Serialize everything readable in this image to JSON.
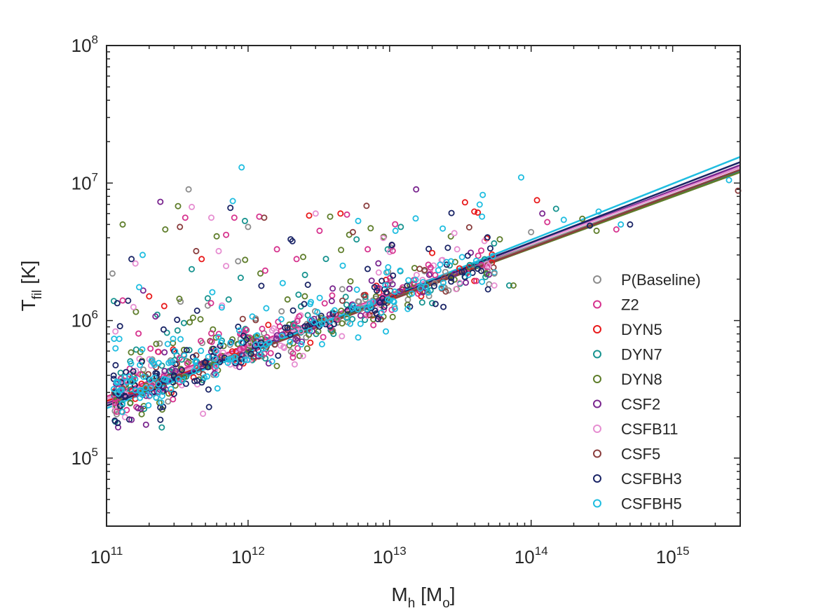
{
  "chart_data": {
    "type": "scatter",
    "title": "",
    "xscale": "log",
    "yscale": "log",
    "xlim": [
      100000000000.0,
      3000000000000000.0
    ],
    "ylim": [
      32000.0,
      100000000.0
    ],
    "xlabel": {
      "main": "M",
      "sub": "h",
      "suffix": " [M",
      "sub2": "o",
      "end": "]"
    },
    "ylabel": {
      "main": "T",
      "sub": "fil",
      "suffix": " [K]"
    },
    "x_ticks": [
      {
        "base": "10",
        "exp": "11",
        "value": 100000000000.0
      },
      {
        "base": "10",
        "exp": "12",
        "value": 1000000000000.0
      },
      {
        "base": "10",
        "exp": "13",
        "value": 10000000000000.0
      },
      {
        "base": "10",
        "exp": "14",
        "value": 100000000000000.0
      },
      {
        "base": "10",
        "exp": "15",
        "value": 1000000000000000.0
      }
    ],
    "y_ticks": [
      {
        "base": "10",
        "exp": "5",
        "value": 100000.0
      },
      {
        "base": "10",
        "exp": "6",
        "value": 1000000.0
      },
      {
        "base": "10",
        "exp": "7",
        "value": 10000000.0
      },
      {
        "base": "10",
        "exp": "8",
        "value": 100000000.0
      }
    ],
    "legend_position": "right",
    "series": [
      {
        "name": "P(Baseline)",
        "color": "#8c8c8c",
        "fit": [
          [
            100000000000.0,
            260000.0
          ],
          [
            3000000000000000.0,
            12500000.0
          ]
        ]
      },
      {
        "name": "Z2",
        "color": "#d6338e",
        "fit": [
          [
            100000000000.0,
            280000.0
          ],
          [
            3000000000000000.0,
            13000000.0
          ]
        ]
      },
      {
        "name": "DYN5",
        "color": "#e8191a",
        "fit": [
          [
            100000000000.0,
            260000.0
          ],
          [
            3000000000000000.0,
            12000000.0
          ]
        ]
      },
      {
        "name": "DYN7",
        "color": "#17938f",
        "fit": [
          [
            100000000000.0,
            250000.0
          ],
          [
            3000000000000000.0,
            12200000.0
          ]
        ]
      },
      {
        "name": "DYN8",
        "color": "#5e7d2a",
        "fit": [
          [
            100000000000.0,
            250000.0
          ],
          [
            3000000000000000.0,
            12000000.0
          ]
        ]
      },
      {
        "name": "CSF2",
        "color": "#7a268f",
        "fit": [
          [
            100000000000.0,
            250000.0
          ],
          [
            3000000000000000.0,
            13500000.0
          ]
        ]
      },
      {
        "name": "CSFB11",
        "color": "#e68ed1",
        "fit": [
          [
            100000000000.0,
            270000.0
          ],
          [
            3000000000000000.0,
            13000000.0
          ]
        ]
      },
      {
        "name": "CSF5",
        "color": "#8a3d3d",
        "fit": [
          [
            100000000000.0,
            240000.0
          ],
          [
            3000000000000000.0,
            12500000.0
          ]
        ]
      },
      {
        "name": "CSFBH3",
        "color": "#1a2466",
        "fit": [
          [
            100000000000.0,
            240000.0
          ],
          [
            3000000000000000.0,
            14200000.0
          ]
        ]
      },
      {
        "name": "CSFBH5",
        "color": "#1fbde0",
        "fit": [
          [
            100000000000.0,
            230000.0
          ],
          [
            3000000000000000.0,
            15500000.0
          ]
        ]
      }
    ],
    "outliers": [
      [
        110000000000.0,
        2200000.0,
        0
      ],
      [
        130000000000.0,
        5000000.0,
        4
      ],
      [
        150000000000.0,
        2800000.0,
        8
      ],
      [
        160000000000.0,
        2600000.0,
        6
      ],
      [
        180000000000.0,
        3000000.0,
        9
      ],
      [
        240000000000.0,
        7300000.0,
        5
      ],
      [
        260000000000.0,
        4600000.0,
        4
      ],
      [
        320000000000.0,
        6800000.0,
        4
      ],
      [
        330000000000.0,
        4800000.0,
        7
      ],
      [
        360000000000.0,
        5600000.0,
        1
      ],
      [
        380000000000.0,
        9000000.0,
        0
      ],
      [
        400000000000.0,
        6700000.0,
        6
      ],
      [
        430000000000.0,
        3200000.0,
        7
      ],
      [
        470000000000.0,
        2800000.0,
        2
      ],
      [
        550000000000.0,
        5600000.0,
        6
      ],
      [
        600000000000.0,
        4100000.0,
        4
      ],
      [
        620000000000.0,
        3200000.0,
        6
      ],
      [
        700000000000.0,
        4200000.0,
        1
      ],
      [
        750000000000.0,
        6600000.0,
        8
      ],
      [
        780000000000.0,
        7400000.0,
        9
      ],
      [
        800000000000.0,
        5600000.0,
        1
      ],
      [
        850000000000.0,
        2700000.0,
        0
      ],
      [
        900000000000.0,
        13000000.0,
        9
      ],
      [
        950000000000.0,
        5300000.0,
        3
      ],
      [
        1000000000000.0,
        4800000.0,
        0
      ],
      [
        1200000000000.0,
        5700000.0,
        1
      ],
      [
        1300000000000.0,
        5600000.0,
        7
      ],
      [
        1600000000000.0,
        3300000.0,
        1
      ],
      [
        2000000000000.0,
        3900000.0,
        8
      ],
      [
        2200000000000.0,
        2800000.0,
        1
      ],
      [
        2700000000000.0,
        5800000.0,
        2
      ],
      [
        3000000000000.0,
        6000000.0,
        6
      ],
      [
        3200000000000.0,
        4500000.0,
        1
      ],
      [
        3800000000000.0,
        5700000.0,
        4
      ],
      [
        4500000000000.0,
        6000000.0,
        2
      ],
      [
        5000000000000.0,
        5900000.0,
        1
      ],
      [
        5500000000000.0,
        4400000.0,
        7
      ],
      [
        6000000000000.0,
        5300000.0,
        9
      ],
      [
        7000000000000.0,
        3300000.0,
        1
      ],
      [
        11000000000000.0,
        4500000.0,
        9
      ],
      [
        12000000000000.0,
        4800000.0,
        3
      ],
      [
        20000000000000.0,
        3100000.0,
        2
      ],
      [
        30000000000000.0,
        3300000.0,
        6
      ],
      [
        42000000000000.0,
        6100000.0,
        2
      ],
      [
        45000000000000.0,
        5700000.0,
        9
      ],
      [
        50000000000000.0,
        2500000.0,
        6
      ],
      [
        55000000000000.0,
        2200000.0,
        0
      ],
      [
        60000000000000.0,
        3900000.0,
        4
      ],
      [
        70000000000000.0,
        1800000.0,
        3
      ],
      [
        75000000000000.0,
        1800000.0,
        4
      ],
      [
        85000000000000.0,
        11000000.0,
        9
      ],
      [
        100000000000000.0,
        4400000.0,
        0
      ],
      [
        110000000000000.0,
        7500000.0,
        2
      ],
      [
        120000000000000.0,
        6000000.0,
        5
      ],
      [
        130000000000000.0,
        5200000.0,
        1
      ],
      [
        150000000000000.0,
        6500000.0,
        3
      ],
      [
        170000000000000.0,
        5400000.0,
        9
      ],
      [
        230000000000000.0,
        5500000.0,
        4
      ],
      [
        260000000000000.0,
        4900000.0,
        8
      ],
      [
        290000000000000.0,
        4500000.0,
        4
      ],
      [
        300000000000000.0,
        6200000.0,
        9
      ],
      [
        400000000000000.0,
        4600000.0,
        1
      ],
      [
        430000000000000.0,
        5000000.0,
        9
      ],
      [
        500000000000000.0,
        5000000.0,
        8
      ],
      [
        2500000000000000.0,
        10500000.0,
        9
      ],
      [
        2900000000000000.0,
        8800000.0,
        7
      ],
      [
        120000000000.0,
        180000.0,
        8
      ],
      [
        150000000000.0,
        190000.0,
        5
      ],
      [
        190000000000.0,
        175000.0,
        5
      ],
      [
        240000000000.0,
        190000.0,
        8
      ],
      [
        480000000000.0,
        210000.0,
        6
      ],
      [
        530000000000.0,
        235000.0,
        8
      ],
      [
        130000000000.0,
        1400000.0,
        1
      ],
      [
        170000000000.0,
        1750000.0,
        9
      ],
      [
        200000000000.0,
        1500000.0,
        2
      ]
    ]
  }
}
